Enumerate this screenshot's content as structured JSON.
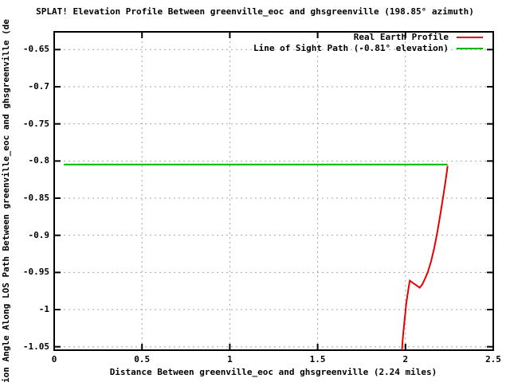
{
  "colors": {
    "background": "#ffffff",
    "text": "#000000",
    "border": "#000000",
    "grid": "#a6a6a6",
    "profile_red": "#e80000",
    "los_green": "#00b400"
  },
  "chart_data": {
    "type": "line",
    "title": "SPLAT! Elevation Profile Between greenville_eoc and ghsgreenville (198.85° azimuth)",
    "xlabel": "Distance Between greenville_eoc and ghsgreenville (2.24 miles)",
    "ylabel": "ion Angle Along LOS Path Between greenville_eoc and ghsgreenville (de",
    "xlim": [
      0,
      2.5
    ],
    "ylim": [
      -1.0546,
      -0.6261
    ],
    "grid": true,
    "legend_position": "top-right",
    "xticks": [
      {
        "value": 0,
        "label": "0"
      },
      {
        "value": 0.5,
        "label": "0.5"
      },
      {
        "value": 1,
        "label": "1"
      },
      {
        "value": 1.5,
        "label": "1.5"
      },
      {
        "value": 2,
        "label": "2"
      },
      {
        "value": 2.5,
        "label": "2.5"
      }
    ],
    "yticks": [
      {
        "value": -0.65,
        "label": "-0.65"
      },
      {
        "value": -0.7,
        "label": "-0.7"
      },
      {
        "value": -0.75,
        "label": "-0.75"
      },
      {
        "value": -0.8,
        "label": "-0.8"
      },
      {
        "value": -0.85,
        "label": "-0.85"
      },
      {
        "value": -0.9,
        "label": "-0.9"
      },
      {
        "value": -0.95,
        "label": "-0.95"
      },
      {
        "value": -1,
        "label": "-1"
      },
      {
        "value": -1.05,
        "label": "-1.05"
      }
    ],
    "series": [
      {
        "name": "Real Earth Profile",
        "color": "#e80000",
        "points": [
          [
            1.98,
            -1.0546
          ],
          [
            1.987,
            -1.033
          ],
          [
            1.996,
            -1.012
          ],
          [
            2.005,
            -0.991
          ],
          [
            2.012,
            -0.98
          ],
          [
            2.019,
            -0.969
          ],
          [
            2.025,
            -0.961
          ],
          [
            2.042,
            -0.964
          ],
          [
            2.06,
            -0.967
          ],
          [
            2.081,
            -0.9705
          ],
          [
            2.096,
            -0.966
          ],
          [
            2.114,
            -0.957
          ],
          [
            2.128,
            -0.949
          ],
          [
            2.146,
            -0.935
          ],
          [
            2.164,
            -0.917
          ],
          [
            2.182,
            -0.895
          ],
          [
            2.2,
            -0.87
          ],
          [
            2.218,
            -0.843
          ],
          [
            2.232,
            -0.821
          ],
          [
            2.24,
            -0.8066
          ]
        ]
      },
      {
        "name": "Line of Sight Path (-0.81° elevation)",
        "color": "#00b400",
        "points": [
          [
            0.055,
            -0.8047
          ],
          [
            2.24,
            -0.8047
          ]
        ]
      }
    ]
  }
}
